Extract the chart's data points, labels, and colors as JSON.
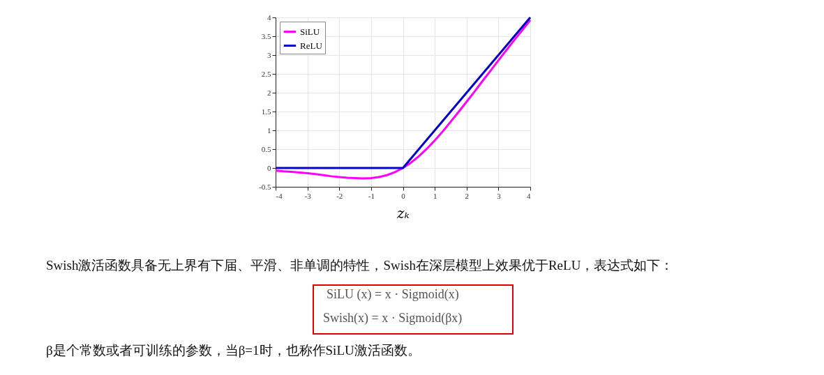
{
  "chart_data": {
    "type": "line",
    "xlabel": "zₖ",
    "series": [
      {
        "name": "SiLU",
        "color": "#ff00ff",
        "x": [
          -4,
          -3.75,
          -3.5,
          -3.25,
          -3,
          -2.75,
          -2.5,
          -2.25,
          -2,
          -1.75,
          -1.5,
          -1.25,
          -1,
          -0.75,
          -0.5,
          -0.25,
          0,
          0.25,
          0.5,
          0.75,
          1,
          1.25,
          1.5,
          1.75,
          2,
          2.25,
          2.5,
          2.75,
          3,
          3.25,
          3.5,
          3.75,
          4
        ],
        "values": [
          -0.07,
          -0.09,
          -0.1,
          -0.12,
          -0.14,
          -0.16,
          -0.19,
          -0.22,
          -0.24,
          -0.26,
          -0.27,
          -0.28,
          -0.27,
          -0.24,
          -0.19,
          -0.11,
          0,
          0.14,
          0.31,
          0.51,
          0.73,
          0.97,
          1.23,
          1.49,
          1.76,
          2.03,
          2.31,
          2.58,
          2.86,
          3.13,
          3.4,
          3.66,
          3.93
        ]
      },
      {
        "name": "ReLU",
        "color": "#0000cc",
        "x": [
          -4,
          0,
          4
        ],
        "values": [
          0,
          0,
          4
        ]
      }
    ],
    "xlim": [
      -4,
      4
    ],
    "xticks": [
      -4,
      -3,
      -2,
      -1,
      0,
      1,
      2,
      3,
      4
    ],
    "ylim": [
      -0.5,
      4
    ],
    "yticks": [
      -0.5,
      0,
      0.5,
      1,
      1.5,
      2,
      2.5,
      3,
      3.5,
      4
    ],
    "grid": true,
    "legend": "top left",
    "marker": "none",
    "line_style": "solid",
    "annotations": [
      "Swish激活函数具备无上界有下届、平滑、非单调的特性，Swish在深层模型上效果优于ReLU，表达式如下：",
      "SiLU (x) = x · Sigmoid(x)",
      "Swish(x) = x · Sigmoid(βx)",
      "β是个常数或者可训练的参数，当β=1时，也称作SiLU激活函数。"
    ]
  }
}
